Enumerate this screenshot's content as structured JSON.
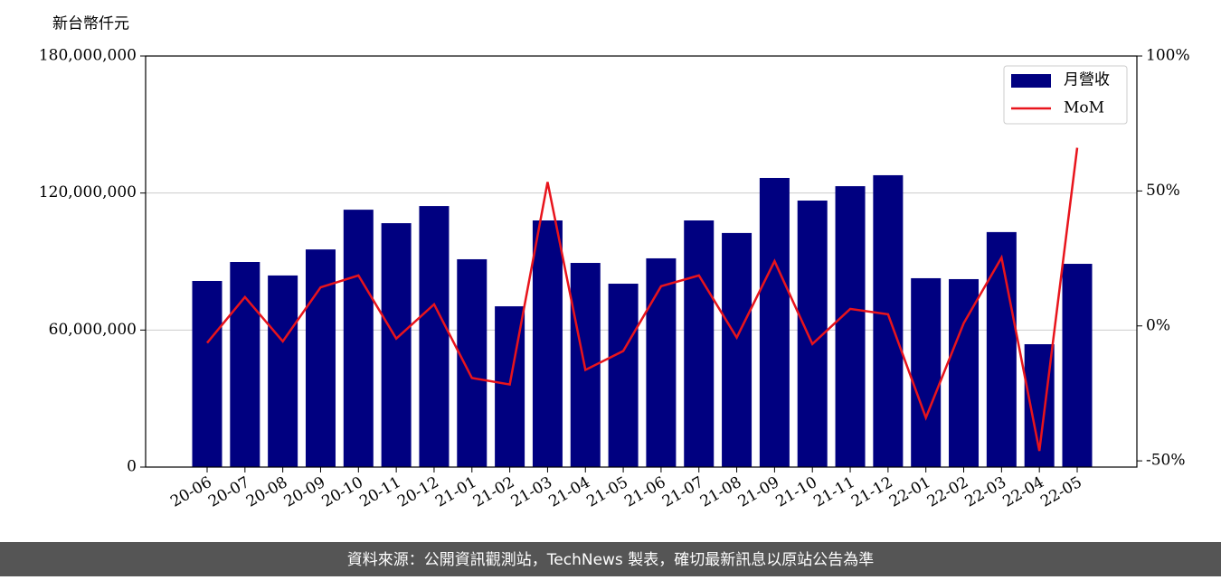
{
  "chart_data": {
    "type": "bar_line",
    "y_label": "新台幣仟元",
    "source": "資料來源：公開資訊觀測站，TechNews 製表，確切最新訊息以原站公告為準",
    "categories": [
      "20-06",
      "20-07",
      "20-08",
      "20-09",
      "20-10",
      "20-11",
      "20-12",
      "21-01",
      "21-02",
      "21-03",
      "21-04",
      "21-05",
      "21-06",
      "21-07",
      "21-08",
      "21-09",
      "21-10",
      "21-11",
      "21-12",
      "22-01",
      "22-02",
      "22-03",
      "22-04",
      "22-05"
    ],
    "series": [
      {
        "name": "月營收",
        "type": "bar",
        "color": "#000080",
        "values": [
          81500000,
          89800000,
          83900000,
          95300000,
          112700000,
          106800000,
          114300000,
          91000000,
          70400000,
          108000000,
          89400000,
          80300000,
          91400000,
          108000000,
          102500000,
          126600000,
          116700000,
          123000000,
          127800000,
          82700000,
          82300000,
          102900000,
          53800000,
          89000000
        ]
      },
      {
        "name": "MoM",
        "type": "line",
        "axis": "y2",
        "color": "#e8141c",
        "values": [
          -6.3,
          10.7,
          -5.7,
          14.3,
          18.7,
          -4.7,
          8.0,
          -19.3,
          -21.7,
          53.3,
          -16.3,
          -9.3,
          14.7,
          18.7,
          -4.3,
          24.0,
          -6.7,
          6.3,
          4.3,
          -34.0,
          1.0,
          25.3,
          -46.3,
          66.0
        ]
      }
    ],
    "ylim": [
      0,
      180000000
    ],
    "yticks": [
      {
        "value": 0,
        "label": "0"
      },
      {
        "value": 60000000,
        "label": "60,000,000"
      },
      {
        "value": 120000000,
        "label": "120,000,000"
      },
      {
        "value": 180000000,
        "label": "180,000,000"
      }
    ],
    "y2lim": [
      -52.3,
      100
    ],
    "y2ticks": [
      {
        "value": -50,
        "label": "-50%"
      },
      {
        "value": 0,
        "label": "0%"
      },
      {
        "value": 50,
        "label": "50%"
      },
      {
        "value": 100,
        "label": "100%"
      }
    ],
    "grid": true,
    "legend": "upper right"
  }
}
